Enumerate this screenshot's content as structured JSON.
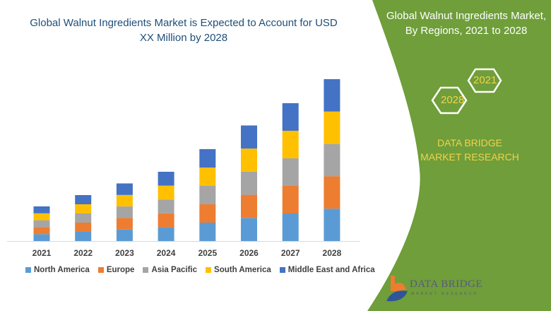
{
  "title": "Global Walnut Ingredients Market is Expected to Account for USD XX Million by 2028",
  "side_panel": {
    "title": "Global Walnut Ingredients Market, By Regions, 2021 to 2028",
    "hex_start": "2021",
    "hex_end": "2028",
    "brand": "DATA BRIDGE MARKET RESEARCH",
    "logo_text": "DATA BRIDGE",
    "logo_subtext": "MARKET RESEARCH",
    "color": "#6f9e3a"
  },
  "chart_data": {
    "type": "bar",
    "stacked": true,
    "title": "Global Walnut Ingredients Market is Expected to Account for USD XX Million by 2028",
    "categories": [
      "2021",
      "2022",
      "2023",
      "2024",
      "2025",
      "2026",
      "2027",
      "2028"
    ],
    "series": [
      {
        "name": "North America",
        "color": "#5b9bd5",
        "values": [
          9.8,
          13,
          16.3,
          19.6,
          26,
          32.7,
          39,
          45.8
        ]
      },
      {
        "name": "Europe",
        "color": "#ed7d31",
        "values": [
          9.8,
          13,
          16.3,
          19.6,
          26,
          32.7,
          39,
          45.8
        ]
      },
      {
        "name": "Asia Pacific",
        "color": "#a5a5a5",
        "values": [
          9.8,
          13,
          16.3,
          19.6,
          26,
          32.7,
          39,
          45.8
        ]
      },
      {
        "name": "South America",
        "color": "#ffc000",
        "values": [
          9.8,
          13,
          16.3,
          19.6,
          26,
          32.7,
          39,
          45.8
        ]
      },
      {
        "name": "Middle East and Africa",
        "color": "#4472c4",
        "values": [
          9.8,
          13,
          16.3,
          19.6,
          26,
          32.7,
          39,
          45.8
        ]
      }
    ],
    "y_axis_shown": false,
    "grid": false,
    "legend": "bottom"
  }
}
